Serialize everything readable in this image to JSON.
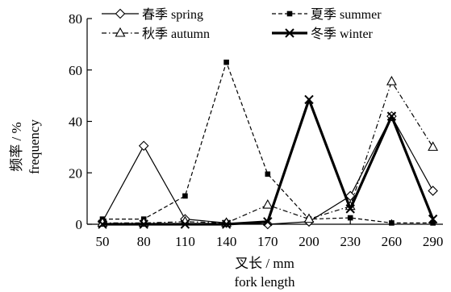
{
  "chart_data": {
    "type": "line",
    "x": [
      50,
      80,
      110,
      140,
      170,
      200,
      230,
      260,
      290
    ],
    "xlabel": "叉长 / mm",
    "xlabel_en": "fork length",
    "ylabel": "频率 / %",
    "ylabel_en": "frequency",
    "ylim": [
      0,
      80
    ],
    "yticks": [
      0,
      20,
      40,
      60,
      80
    ],
    "grid": false,
    "legend_position": "top",
    "series": [
      {
        "name": "春季 spring",
        "style": "solid-open-diamond",
        "values": [
          1,
          30.5,
          2,
          0.5,
          0,
          1,
          11,
          42,
          13
        ]
      },
      {
        "name": "夏季 summer",
        "style": "dashed-filled-square",
        "values": [
          2,
          2,
          11,
          63,
          19.5,
          2,
          2.5,
          0.5,
          0.5
        ]
      },
      {
        "name": "秋季 autumn",
        "style": "dashdot-open-triangle",
        "values": [
          0.5,
          0.5,
          1,
          0.5,
          7.5,
          2,
          7,
          55.5,
          30
        ]
      },
      {
        "name": "冬季 winter",
        "style": "thick-solid-cross",
        "values": [
          0,
          0,
          0,
          0,
          1,
          48.5,
          6,
          42,
          2
        ]
      }
    ]
  }
}
